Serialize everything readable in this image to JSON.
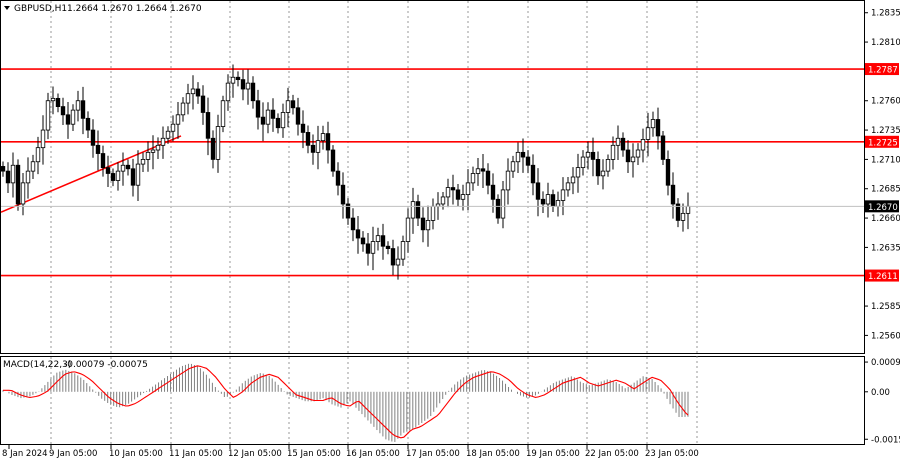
{
  "header": {
    "symbol": "GBPUSD,H1",
    "ohlc": "1.2664 1.2670 1.2664 1.2670"
  },
  "macd_header": {
    "label": "MACD(14,22,3)",
    "values": "-0.00079 -0.00075"
  },
  "colors": {
    "level_line": "#ff0000",
    "candle": "#000000",
    "grid": "#7f7f7f",
    "signal_line": "#ff0000",
    "histogram": "#808080",
    "current_price_line": "#c0c0c0"
  },
  "chart_data": [
    {
      "type": "candlestick",
      "title": "GBPUSD,H1",
      "ylim": [
        1.2545,
        1.2845
      ],
      "y_ticks": [
        "1.2835",
        "1.2810",
        "1.2760",
        "1.2735",
        "1.2710",
        "1.2685",
        "1.2660",
        "1.2635",
        "1.2585",
        "1.2560"
      ],
      "x_ticks": [
        "8 Jan 2024",
        "9 Jan 05:00",
        "10 Jan 05:00",
        "11 Jan 05:00",
        "12 Jan 05:00",
        "15 Jan 05:00",
        "16 Jan 05:00",
        "17 Jan 05:00",
        "18 Jan 05:00",
        "19 Jan 05:00",
        "22 Jan 05:00",
        "23 Jan 05:00"
      ],
      "current_price": 1.267,
      "horizontal_levels": [
        {
          "label": "1.2787",
          "value": 1.2787
        },
        {
          "label": "1.2725",
          "value": 1.2725
        },
        {
          "label": "1.2611",
          "value": 1.2611
        }
      ],
      "trendline": {
        "from": {
          "x": "8 Jan 2024",
          "y": 1.2665
        },
        "to": {
          "x": "11 Jan 05:00",
          "y": 1.273
        }
      },
      "closes": [
        1.27,
        1.269,
        1.2705,
        1.2672,
        1.269,
        1.27,
        1.2708,
        1.272,
        1.2735,
        1.276,
        1.2762,
        1.2755,
        1.2748,
        1.274,
        1.2752,
        1.276,
        1.2745,
        1.2735,
        1.2722,
        1.2715,
        1.2703,
        1.2698,
        1.2692,
        1.27,
        1.2705,
        1.2702,
        1.2688,
        1.2706,
        1.271,
        1.2716,
        1.2718,
        1.2722,
        1.2728,
        1.2734,
        1.274,
        1.2748,
        1.2758,
        1.2766,
        1.277,
        1.2764,
        1.275,
        1.2728,
        1.271,
        1.2738,
        1.276,
        1.2775,
        1.278,
        1.2778,
        1.277,
        1.2775,
        1.276,
        1.2746,
        1.274,
        1.2752,
        1.2745,
        1.2737,
        1.275,
        1.276,
        1.2754,
        1.274,
        1.2733,
        1.2722,
        1.2716,
        1.2726,
        1.2732,
        1.2718,
        1.27,
        1.2688,
        1.2672,
        1.266,
        1.265,
        1.2643,
        1.2638,
        1.263,
        1.264,
        1.2645,
        1.2636,
        1.2634,
        1.262,
        1.2625,
        1.264,
        1.266,
        1.2674,
        1.266,
        1.265,
        1.2658,
        1.267,
        1.2672,
        1.2678,
        1.2686,
        1.2684,
        1.2676,
        1.268,
        1.269,
        1.2698,
        1.2702,
        1.27,
        1.2688,
        1.2676,
        1.266,
        1.2684,
        1.27,
        1.2708,
        1.2716,
        1.2712,
        1.2705,
        1.269,
        1.2676,
        1.2672,
        1.268,
        1.267,
        1.2675,
        1.2684,
        1.269,
        1.2695,
        1.2703,
        1.2712,
        1.2716,
        1.271,
        1.2696,
        1.27,
        1.271,
        1.2722,
        1.2728,
        1.2718,
        1.2708,
        1.2712,
        1.2718,
        1.2727,
        1.2737,
        1.2744,
        1.273,
        1.271,
        1.2688,
        1.2672,
        1.2658,
        1.2664,
        1.267
      ],
      "ohlc_sampled": true
    },
    {
      "type": "histogram",
      "title": "MACD(14,22,3)",
      "ylim": [
        -0.00165,
        0.0011
      ],
      "y_ticks": [
        "0.00094",
        "0.00",
        "-0.0015"
      ],
      "values": [
        5e-05,
        -0.0001,
        -0.0002,
        -0.00015,
        0.0,
        0.0003,
        0.0006,
        0.0007,
        0.0006,
        0.0004,
        0.0001,
        -0.0002,
        -0.0004,
        -0.0005,
        -0.0004,
        -0.0002,
        0.0,
        0.0002,
        0.0004,
        0.0006,
        0.0008,
        0.0009,
        0.0008,
        0.0005,
        0.0001,
        -0.0002,
        0.0,
        0.0003,
        0.0005,
        0.0006,
        0.0005,
        0.0002,
        -0.0001,
        -0.0002,
        -0.0003,
        -0.0003,
        -0.0002,
        -0.0004,
        -0.0005,
        -0.0003,
        -0.0006,
        -0.0009,
        -0.0012,
        -0.0015,
        -0.0016,
        -0.0013,
        -0.0012,
        -0.001,
        -0.0008,
        -0.0004,
        0.0,
        0.0003,
        0.0005,
        0.0006,
        0.0007,
        0.0006,
        0.0004,
        0.0001,
        -0.0001,
        -0.0002,
        -0.0001,
        0.0001,
        0.0003,
        0.0004,
        0.0005,
        0.0003,
        0.0002,
        0.0003,
        0.0004,
        0.0003,
        0.0001,
        0.0003,
        0.0005,
        0.0004,
        0.0001,
        -0.0004,
        -0.0008,
        -0.00079
      ],
      "signal_sampled": true,
      "current_values": "-0.00079 -0.00075"
    }
  ]
}
